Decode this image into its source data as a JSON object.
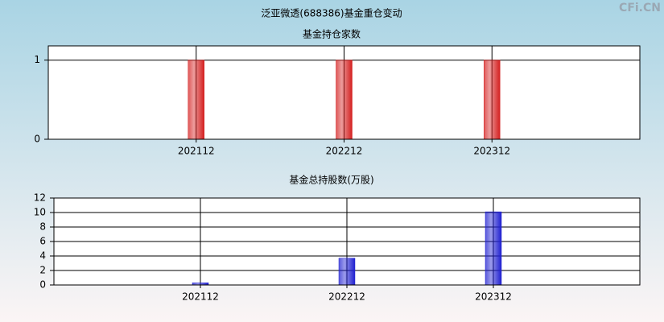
{
  "title": "泛亚微透(688386)基金重仓变动",
  "watermark": "CFi.CN",
  "chart_data": [
    {
      "type": "bar",
      "title": "基金持仓家数",
      "categories": [
        "202112",
        "202212",
        "202312"
      ],
      "values": [
        1,
        1,
        1
      ],
      "color": "#d42020",
      "ylim": [
        0,
        1.18
      ],
      "yticks": [
        0,
        1
      ],
      "grid": true
    },
    {
      "type": "bar",
      "title": "基金总持股数(万股)",
      "categories": [
        "202112",
        "202212",
        "202312"
      ],
      "values": [
        0.3,
        3.7,
        10.1
      ],
      "color": "#2020d0",
      "ylim": [
        0,
        12
      ],
      "yticks": [
        0,
        2,
        4,
        6,
        8,
        10,
        12
      ],
      "grid": true
    }
  ]
}
